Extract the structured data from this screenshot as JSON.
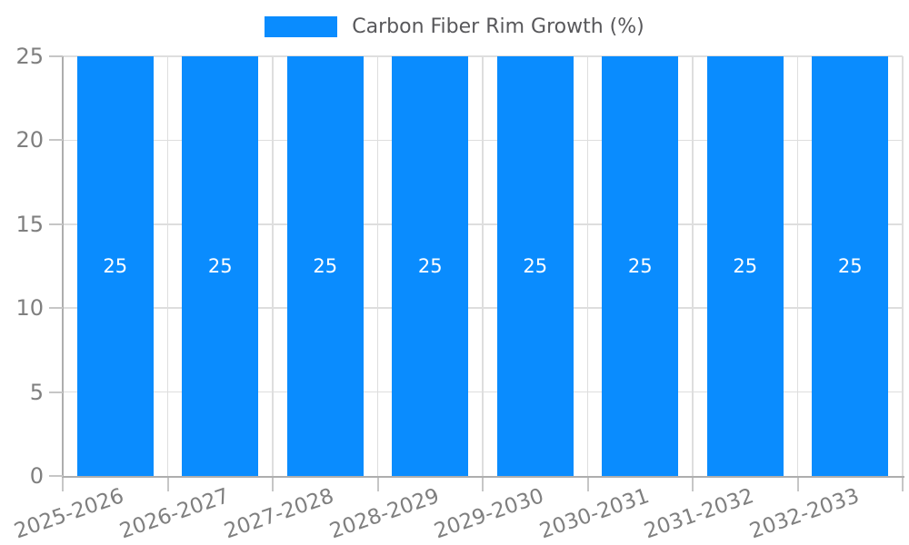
{
  "chart_data": {
    "type": "bar",
    "title": "",
    "categories": [
      "2025-2026",
      "2026-2027",
      "2027-2028",
      "2028-2029",
      "2029-2030",
      "2030-2031",
      "2031-2032",
      "2032-2033"
    ],
    "series": [
      {
        "name": "Carbon Fiber Rim Growth (%)",
        "values": [
          25,
          25,
          25,
          25,
          25,
          25,
          25,
          25
        ]
      }
    ],
    "data_labels": [
      "25",
      "25",
      "25",
      "25",
      "25",
      "25",
      "25",
      "25"
    ],
    "xlabel": "",
    "ylabel": "",
    "ylim": [
      0,
      25
    ],
    "yticks": [
      "0",
      "5",
      "10",
      "15",
      "20",
      "25"
    ],
    "grid": true,
    "legend_position": "top-center",
    "x_label_rotation_deg": -19,
    "colors": {
      "bar": "#0a8cfe",
      "grid_line": "#dedede",
      "axis_spine": "#aeaeae",
      "tick_mark": "#c6c6c6",
      "tick_label": "#7f7f7f",
      "data_label": "#ffffff",
      "legend_text": "#58585b",
      "background": "#ffffff"
    }
  }
}
